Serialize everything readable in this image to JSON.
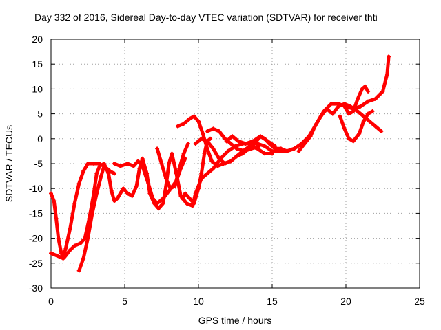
{
  "chart_data": {
    "type": "scatter",
    "title": "Day 332 of 2016, Sidereal Day-to-day VTEC variation (SDTVAR) for receiver thti",
    "xlabel": "GPS time / hours",
    "ylabel": "SDTVAR / TECUs",
    "xlim": [
      0,
      25
    ],
    "ylim": [
      -30,
      20
    ],
    "xticks": [
      "0",
      "5",
      "10",
      "15",
      "20",
      "25"
    ],
    "yticks": [
      "20",
      "15",
      "10",
      "5",
      "0",
      "-5",
      "-10",
      "-15",
      "-20",
      "-25",
      "-30"
    ],
    "xtick_values": [
      0,
      5,
      10,
      15,
      20,
      25
    ],
    "ytick_values": [
      20,
      15,
      10,
      5,
      0,
      -5,
      -10,
      -15,
      -20,
      -25,
      -30
    ],
    "grid": true,
    "marker": "plus",
    "color": "#ff0000",
    "series": [
      {
        "points": [
          [
            0.0,
            -11.0
          ],
          [
            0.2,
            -12.5
          ],
          [
            0.35,
            -16.0
          ],
          [
            0.5,
            -20.0
          ],
          [
            0.7,
            -23.0
          ],
          [
            0.85,
            -24.0
          ],
          [
            1.0,
            -23.5
          ],
          [
            1.25,
            -22.5
          ],
          [
            1.6,
            -21.5
          ],
          [
            2.0,
            -21.0
          ],
          [
            2.3,
            -20.0
          ],
          [
            2.6,
            -16.0
          ],
          [
            2.9,
            -11.0
          ],
          [
            3.1,
            -7.0
          ],
          [
            3.3,
            -5.5
          ],
          [
            3.6,
            -5.0
          ],
          [
            3.9,
            -7.0
          ],
          [
            4.1,
            -10.5
          ],
          [
            4.3,
            -12.5
          ],
          [
            4.5,
            -12.0
          ],
          [
            4.9,
            -10.0
          ],
          [
            5.2,
            -11.0
          ],
          [
            5.5,
            -11.5
          ],
          [
            5.8,
            -9.5
          ],
          [
            6.0,
            -6.0
          ],
          [
            6.2,
            -4.0
          ],
          [
            6.5,
            -7.0
          ],
          [
            6.7,
            -11.0
          ],
          [
            7.0,
            -13.0
          ],
          [
            7.3,
            -14.0
          ],
          [
            7.6,
            -13.0
          ],
          [
            7.8,
            -9.5
          ],
          [
            8.0,
            -5.0
          ],
          [
            8.2,
            -3.0
          ],
          [
            8.5,
            -7.0
          ],
          [
            8.8,
            -11.5
          ],
          [
            9.2,
            -13.0
          ],
          [
            9.6,
            -13.5
          ],
          [
            9.8,
            -11.0
          ],
          [
            10.2,
            -8.0
          ],
          [
            10.6,
            -7.0
          ],
          [
            11.0,
            -6.0
          ],
          [
            11.5,
            -4.0
          ],
          [
            12.0,
            -2.5
          ],
          [
            12.5,
            -1.5
          ],
          [
            13.0,
            -1.0
          ],
          [
            13.5,
            -1.0
          ],
          [
            14.0,
            -1.0
          ],
          [
            14.5,
            -1.5
          ],
          [
            15.0,
            -2.5
          ],
          [
            15.5,
            -2.5
          ],
          [
            16.0,
            -2.5
          ],
          [
            16.5,
            -2.0
          ],
          [
            17.0,
            -1.0
          ],
          [
            17.5,
            0.5
          ],
          [
            18.0,
            3.0
          ],
          [
            18.5,
            5.5
          ],
          [
            19.0,
            7.0
          ],
          [
            19.5,
            7.0
          ],
          [
            20.0,
            6.5
          ],
          [
            20.5,
            6.0
          ],
          [
            21.0,
            6.5
          ],
          [
            21.5,
            7.5
          ],
          [
            22.0,
            8.0
          ],
          [
            22.5,
            9.5
          ],
          [
            22.8,
            13.0
          ],
          [
            22.9,
            16.5
          ]
        ]
      },
      {
        "points": [
          [
            0.0,
            -23.0
          ],
          [
            0.4,
            -23.5
          ],
          [
            0.8,
            -24.0
          ],
          [
            1.0,
            -22.0
          ],
          [
            1.3,
            -18.0
          ],
          [
            1.6,
            -13.0
          ],
          [
            1.9,
            -9.0
          ],
          [
            2.2,
            -6.5
          ],
          [
            2.5,
            -5.0
          ],
          [
            2.9,
            -5.0
          ],
          [
            3.3,
            -5.0
          ]
        ]
      },
      {
        "points": [
          [
            1.9,
            -26.5
          ],
          [
            2.2,
            -24.0
          ],
          [
            2.5,
            -20.0
          ],
          [
            2.8,
            -15.0
          ],
          [
            3.1,
            -11.0
          ],
          [
            3.4,
            -7.5
          ],
          [
            3.6,
            -5.5
          ],
          [
            4.0,
            -6.5
          ],
          [
            4.3,
            -7.0
          ]
        ]
      },
      {
        "points": [
          [
            4.3,
            -5.0
          ],
          [
            4.7,
            -5.5
          ],
          [
            5.2,
            -5.0
          ],
          [
            5.6,
            -5.5
          ],
          [
            5.9,
            -4.5
          ],
          [
            6.2,
            -5.5
          ],
          [
            6.6,
            -9.0
          ],
          [
            6.9,
            -12.0
          ],
          [
            7.2,
            -13.0
          ],
          [
            7.6,
            -12.0
          ],
          [
            8.0,
            -10.5
          ],
          [
            8.5,
            -8.5
          ],
          [
            8.8,
            -6.0
          ],
          [
            9.1,
            -4.0
          ]
        ]
      },
      {
        "points": [
          [
            7.2,
            -2.0
          ],
          [
            7.5,
            -5.0
          ],
          [
            7.8,
            -8.0
          ],
          [
            8.1,
            -10.0
          ],
          [
            8.4,
            -9.5
          ],
          [
            8.7,
            -6.0
          ],
          [
            9.0,
            -3.0
          ],
          [
            9.3,
            -1.0
          ]
        ]
      },
      {
        "points": [
          [
            8.9,
            -12.0
          ],
          [
            9.1,
            -11.0
          ],
          [
            9.4,
            -12.0
          ],
          [
            9.7,
            -13.0
          ],
          [
            10.0,
            -10.0
          ],
          [
            10.2,
            -7.0
          ],
          [
            10.4,
            -3.0
          ],
          [
            10.6,
            -0.5
          ],
          [
            10.8,
            0.0
          ]
        ]
      },
      {
        "points": [
          [
            8.6,
            2.5
          ],
          [
            9.0,
            3.0
          ],
          [
            9.4,
            4.0
          ],
          [
            9.7,
            4.5
          ],
          [
            10.0,
            3.5
          ],
          [
            10.3,
            1.0
          ],
          [
            10.6,
            -2.0
          ],
          [
            10.9,
            -4.5
          ],
          [
            11.3,
            -5.5
          ],
          [
            11.7,
            -5.0
          ],
          [
            12.2,
            -4.5
          ],
          [
            12.6,
            -3.5
          ],
          [
            13.0,
            -3.0
          ],
          [
            13.4,
            -2.0
          ],
          [
            13.8,
            -1.0
          ],
          [
            14.2,
            0.5
          ],
          [
            14.5,
            0.0
          ],
          [
            14.8,
            -1.0
          ],
          [
            15.2,
            -2.0
          ],
          [
            15.6,
            -2.0
          ],
          [
            16.0,
            -2.5
          ],
          [
            16.5,
            -2.0
          ]
        ]
      },
      {
        "points": [
          [
            9.8,
            -1.0
          ],
          [
            10.2,
            0.0
          ],
          [
            10.6,
            -0.5
          ],
          [
            11.0,
            -2.0
          ],
          [
            11.4,
            -4.0
          ],
          [
            11.8,
            -5.0
          ],
          [
            12.2,
            -4.5
          ],
          [
            12.6,
            -3.5
          ],
          [
            13.0,
            -2.5
          ],
          [
            13.5,
            -1.5
          ],
          [
            14.0,
            -2.0
          ],
          [
            14.5,
            -3.0
          ],
          [
            15.0,
            -3.0
          ]
        ]
      },
      {
        "points": [
          [
            10.6,
            1.5
          ],
          [
            11.0,
            2.0
          ],
          [
            11.4,
            1.5
          ],
          [
            11.8,
            0.0
          ],
          [
            12.2,
            -1.0
          ],
          [
            12.6,
            -2.0
          ],
          [
            13.1,
            -2.5
          ],
          [
            13.6,
            -2.0
          ],
          [
            14.1,
            -1.5
          ]
        ]
      },
      {
        "points": [
          [
            11.9,
            -0.5
          ],
          [
            12.3,
            0.5
          ],
          [
            12.7,
            -0.5
          ],
          [
            13.2,
            -1.0
          ],
          [
            13.7,
            -0.5
          ],
          [
            14.2,
            0.5
          ],
          [
            14.7,
            -0.5
          ],
          [
            15.2,
            -1.5
          ]
        ]
      },
      {
        "points": [
          [
            16.8,
            -2.5
          ],
          [
            17.2,
            -1.0
          ],
          [
            17.6,
            0.5
          ],
          [
            17.9,
            2.5
          ],
          [
            18.3,
            4.5
          ],
          [
            18.7,
            6.0
          ],
          [
            19.1,
            5.0
          ],
          [
            19.5,
            6.5
          ],
          [
            19.9,
            7.0
          ],
          [
            20.3,
            6.5
          ],
          [
            20.8,
            5.5
          ],
          [
            21.2,
            4.5
          ],
          [
            21.6,
            3.5
          ],
          [
            22.0,
            2.5
          ],
          [
            22.4,
            1.5
          ]
        ]
      },
      {
        "points": [
          [
            19.6,
            4.5
          ],
          [
            19.9,
            2.0
          ],
          [
            20.2,
            0.0
          ],
          [
            20.5,
            -0.5
          ],
          [
            20.9,
            1.0
          ],
          [
            21.2,
            3.5
          ],
          [
            21.5,
            5.0
          ],
          [
            21.8,
            5.5
          ]
        ]
      },
      {
        "points": [
          [
            19.9,
            6.5
          ],
          [
            20.2,
            5.0
          ],
          [
            20.5,
            5.5
          ],
          [
            20.8,
            8.0
          ],
          [
            21.1,
            10.0
          ],
          [
            21.3,
            10.5
          ],
          [
            21.5,
            9.5
          ]
        ]
      }
    ]
  }
}
